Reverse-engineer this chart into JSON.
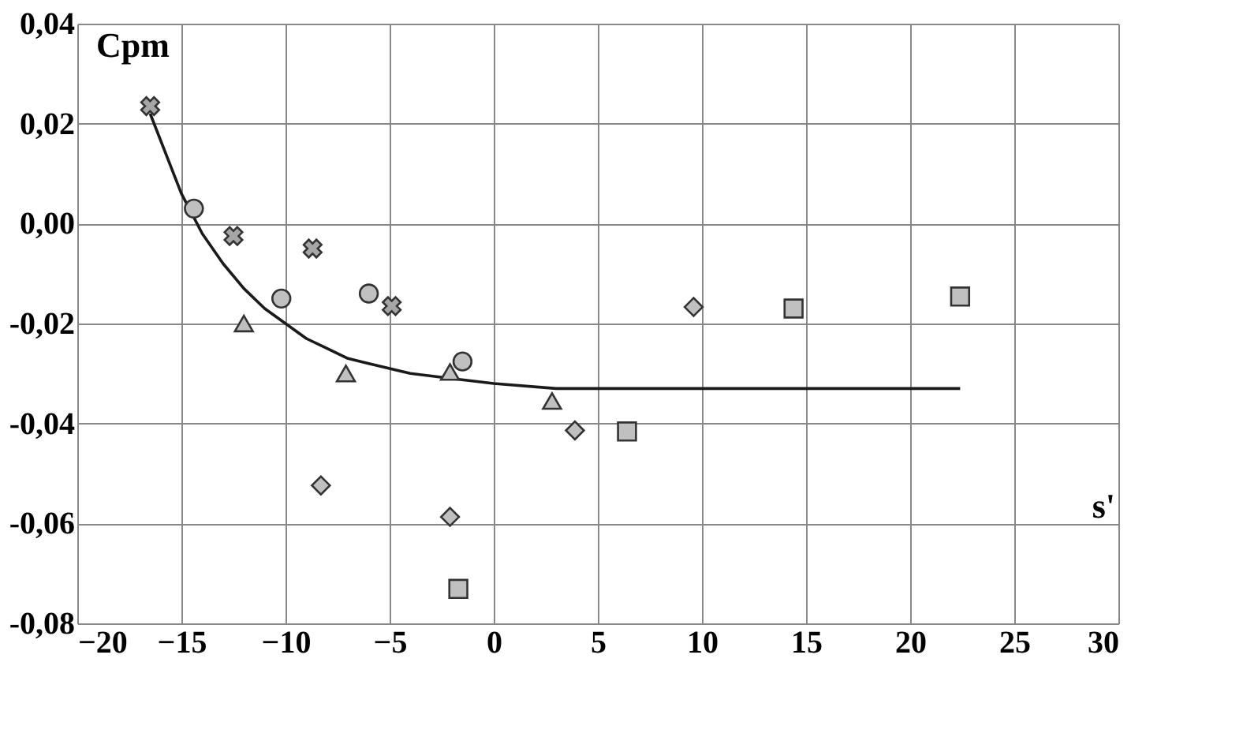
{
  "chart_data": {
    "type": "scatter",
    "xlabel": "s'",
    "ylabel": "Cpm",
    "xlim": [
      -20,
      30
    ],
    "xticks": [
      -20,
      -15,
      -10,
      -5,
      0,
      5,
      10,
      15,
      20,
      25,
      30
    ],
    "ylim": [
      -0.08,
      0.04
    ],
    "yticks": [
      {
        "value": -0.08,
        "label": "-0,08"
      },
      {
        "value": -0.06,
        "label": "-0,06"
      },
      {
        "value": -0.04,
        "label": "-0,04"
      },
      {
        "value": -0.02,
        "label": "-0,02"
      },
      {
        "value": 0,
        "label": "0,00"
      },
      {
        "value": 0.02,
        "label": "0,02"
      },
      {
        "value": 0.04,
        "label": "0,04"
      }
    ],
    "grid": true,
    "series": [
      {
        "type": "line",
        "color": "#1a1a1a",
        "marker": "none",
        "line_style": "solid",
        "x": [
          -16.5,
          -15,
          -14,
          -13,
          -12,
          -11,
          -10,
          -9,
          -8,
          -7,
          -6,
          -5,
          -4,
          -2,
          0,
          3,
          6,
          10,
          15,
          22.4
        ],
        "values": [
          0.022,
          0.006,
          -0.002,
          -0.008,
          -0.013,
          -0.017,
          -0.02,
          -0.023,
          -0.025,
          -0.027,
          -0.028,
          -0.029,
          -0.03,
          -0.031,
          -0.032,
          -0.033,
          -0.033,
          -0.033,
          -0.033,
          -0.033
        ]
      },
      {
        "color": "#a6a6a6",
        "marker": "cross",
        "x": [
          -16.5,
          -12.5,
          -8.7,
          -4.9
        ],
        "values": [
          0.0235,
          -0.0025,
          -0.005,
          -0.0165
        ]
      },
      {
        "color": "#c0c0c0",
        "marker": "circle",
        "x": [
          -14.4,
          -10.2,
          -6.0,
          -1.5
        ],
        "values": [
          0.003,
          -0.015,
          -0.014,
          -0.0276
        ]
      },
      {
        "color": "#c0c0c0",
        "marker": "triangle",
        "x": [
          -12.0,
          -7.1,
          -2.1,
          2.8
        ],
        "values": [
          -0.02,
          -0.03,
          -0.0297,
          -0.0355
        ]
      },
      {
        "color": "#c0c0c0",
        "marker": "diamond",
        "x": [
          -8.3,
          -2.1,
          3.9,
          9.6
        ],
        "values": [
          -0.0524,
          -0.0587,
          -0.0414,
          -0.0167
        ]
      },
      {
        "color": "#c0c0c0",
        "marker": "square",
        "x": [
          -1.7,
          6.4,
          14.4,
          22.4
        ],
        "values": [
          -0.0731,
          -0.0416,
          -0.017,
          -0.0146
        ]
      }
    ]
  }
}
